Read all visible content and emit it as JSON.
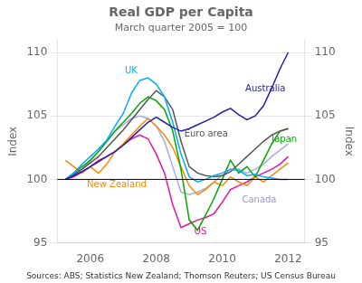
{
  "chart_data": {
    "type": "line",
    "title": "Real GDP per Capita",
    "subtitle": "March quarter 2005 = 100",
    "ylabel": "Index",
    "y2label": "Index",
    "source": "Sources: ABS; Statistics New Zealand; Thomson Reuters; US Census Bureau",
    "x": [
      2005.25,
      2005.5,
      2005.75,
      2006.0,
      2006.25,
      2006.5,
      2006.75,
      2007.0,
      2007.25,
      2007.5,
      2007.75,
      2008.0,
      2008.25,
      2008.5,
      2008.75,
      2009.0,
      2009.25,
      2009.5,
      2009.75,
      2010.0,
      2010.25,
      2010.5,
      2010.75,
      2011.0,
      2011.25,
      2011.5,
      2011.75,
      2012.0
    ],
    "xlim": [
      2005.0,
      2012.5
    ],
    "xticks": [
      2006,
      2008,
      2010,
      2012
    ],
    "ylim": [
      95,
      111
    ],
    "yticks": [
      95,
      100,
      105,
      110
    ],
    "y2lim": [
      95,
      111
    ],
    "y2ticks": [
      95,
      100,
      105,
      110
    ],
    "grid": "y",
    "hline": 100,
    "series": [
      {
        "name": "Australia",
        "color": "#2222aa",
        "values": [
          100.0,
          100.3,
          100.6,
          101.0,
          101.4,
          101.8,
          102.2,
          102.7,
          103.3,
          103.9,
          104.5,
          104.9,
          104.5,
          104.1,
          103.8,
          104.0,
          104.3,
          104.6,
          104.9,
          105.3,
          105.6,
          105.1,
          104.7,
          105.0,
          105.8,
          107.2,
          108.7,
          110.0
        ]
      },
      {
        "name": "UK",
        "color": "#00aaff",
        "values": [
          100.0,
          100.5,
          101.2,
          101.8,
          102.4,
          103.1,
          104.2,
          105.2,
          106.8,
          107.8,
          108.0,
          107.5,
          106.5,
          104.5,
          102.0,
          100.2,
          99.8,
          100.0,
          100.3,
          100.5,
          100.8,
          100.7,
          100.3,
          100.4,
          100.2,
          100.1,
          100.0,
          100.0
        ]
      },
      {
        "name": "Euro area",
        "color": "#555555",
        "values": [
          100.0,
          100.4,
          100.8,
          101.3,
          101.8,
          102.5,
          103.2,
          103.9,
          104.7,
          105.5,
          106.3,
          107.0,
          106.5,
          105.5,
          103.0,
          101.0,
          100.5,
          100.3,
          100.2,
          100.3,
          100.6,
          101.2,
          101.8,
          102.4,
          103.0,
          103.5,
          103.8,
          104.0
        ]
      },
      {
        "name": "Japan",
        "color": "#00aa00",
        "values": [
          100.0,
          100.5,
          101.0,
          101.5,
          102.2,
          103.0,
          103.8,
          104.5,
          105.2,
          106.0,
          106.5,
          106.2,
          105.5,
          103.8,
          100.8,
          96.8,
          96.0,
          97.2,
          98.5,
          100.0,
          101.5,
          100.5,
          101.0,
          100.2,
          101.5,
          102.8,
          103.8,
          104.0
        ]
      },
      {
        "name": "New Zealand",
        "color": "#ff8800",
        "values": [
          101.5,
          101.0,
          100.5,
          101.0,
          100.5,
          101.2,
          102.2,
          102.8,
          103.5,
          104.2,
          104.8,
          104.2,
          103.5,
          102.5,
          101.0,
          99.5,
          98.8,
          99.2,
          99.8,
          99.5,
          100.2,
          99.8,
          99.5,
          100.2,
          99.8,
          100.3,
          100.8,
          101.3
        ]
      },
      {
        "name": "US",
        "color": "#ee1199",
        "values": [
          100.0,
          100.2,
          100.6,
          101.0,
          101.5,
          101.8,
          102.2,
          102.7,
          103.2,
          103.5,
          103.2,
          102.0,
          100.5,
          98.0,
          96.2,
          96.5,
          96.8,
          97.0,
          97.3,
          98.2,
          99.2,
          99.5,
          99.8,
          100.2,
          100.5,
          100.8,
          101.2,
          101.8
        ]
      },
      {
        "name": "Canada",
        "color": "#aaaadd",
        "values": [
          100.0,
          100.3,
          100.8,
          101.5,
          102.2,
          103.0,
          103.8,
          104.3,
          104.8,
          105.0,
          104.8,
          104.2,
          103.0,
          101.0,
          99.0,
          98.8,
          99.0,
          99.3,
          99.8,
          100.3,
          100.8,
          100.8,
          100.5,
          100.8,
          101.2,
          101.8,
          102.3,
          102.8
        ]
      }
    ],
    "annotations": [
      {
        "text": "Australia",
        "x": 2010.7,
        "y": 106.8,
        "color": "#2222aa"
      },
      {
        "text": "UK",
        "x": 2007.05,
        "y": 108.2,
        "color": "#00aaff"
      },
      {
        "text": "Euro area",
        "x": 2008.85,
        "y": 103.2,
        "color": "#555555"
      },
      {
        "text": "Japan",
        "x": 2011.5,
        "y": 102.8,
        "color": "#00aa00"
      },
      {
        "text": "New Zealand",
        "x": 2005.9,
        "y": 99.2,
        "color": "#ff8800"
      },
      {
        "text": "US",
        "x": 2009.15,
        "y": 95.5,
        "color": "#ee1199"
      },
      {
        "text": "Canada",
        "x": 2010.6,
        "y": 98.0,
        "color": "#9999cc"
      }
    ]
  }
}
